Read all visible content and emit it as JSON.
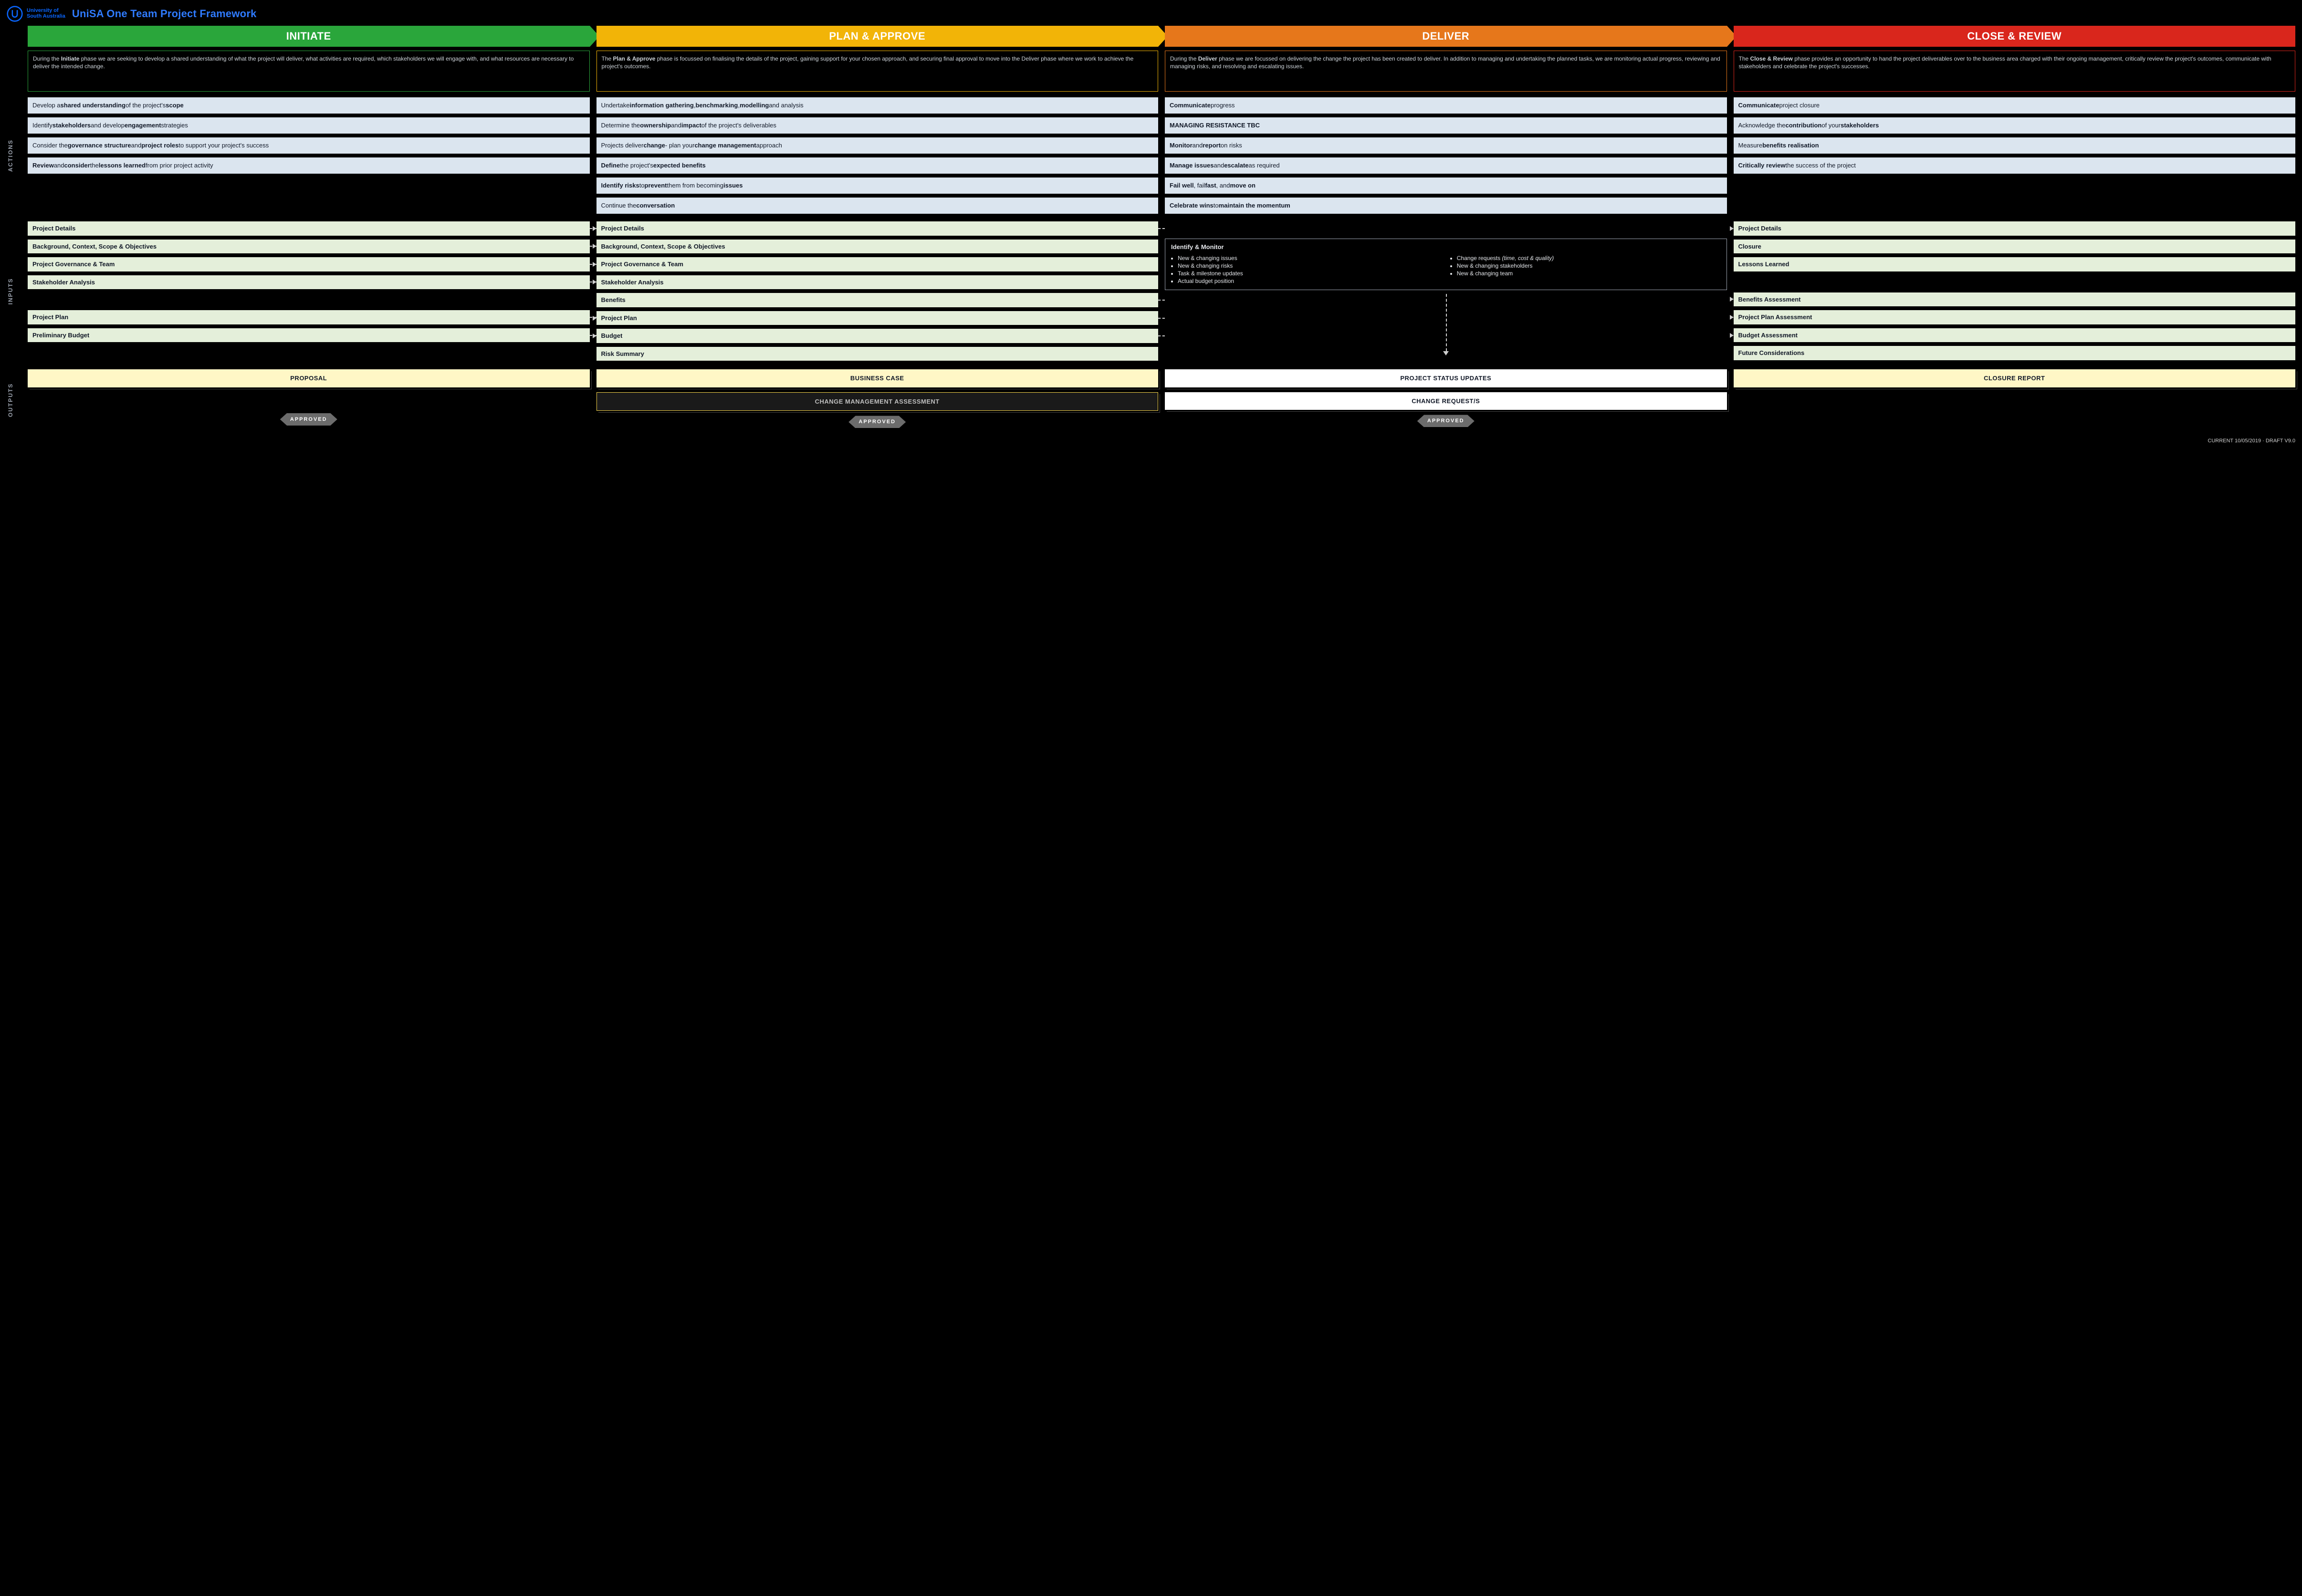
{
  "header": {
    "org_line1": "University of",
    "org_line2": "South Australia",
    "title": "UniSA One Team Project Framework"
  },
  "colors": {
    "initiate": "#2aa63b",
    "plan": "#f2b407",
    "deliver": "#e6771b",
    "close": "#d9261c",
    "action_bg": "#dbe5ef",
    "input_bg": "#e4efda",
    "output_bg": "#fff7c6",
    "approved_bg": "#6c6c6c"
  },
  "side_labels": {
    "actions": "ACTIONS",
    "inputs": "INPUTS",
    "outputs": "OUTPUTS"
  },
  "phases": {
    "initiate": {
      "title": "INITIATE",
      "desc_html": "During the <b>Initiate</b> phase we are seeking to develop a shared understanding of what the project will deliver, what activities are required, which stakeholders we will engage with, and what resources are necessary to deliver the intended change.",
      "actions_html": [
        "Develop a <b>shared understanding</b> of the project's <b>scope</b>",
        "Identify <b>stakeholders</b> and develop <b>engagement</b> strategies",
        "Consider the <b>governance structure</b> and <b>project roles</b> to support your project's success",
        "<b>Review</b> and <b>consider</b> the <b>lessons learned</b> from prior project activity"
      ],
      "inputs": [
        "Project Details",
        "Background, Context, Scope & Objectives",
        "Project Governance & Team",
        "Stakeholder Analysis",
        "",
        "Project Plan",
        "Preliminary Budget",
        ""
      ],
      "outputs": [
        {
          "label": "PROPOSAL",
          "variant": "yellow"
        }
      ],
      "approved": "APPROVED"
    },
    "plan": {
      "title": "PLAN & APPROVE",
      "desc_html": "The <b>Plan & Approve</b> phase is focussed on finalising the details of the project, gaining support for your chosen approach, and securing final approval to move into the Deliver phase where we work to achieve the project's outcomes.",
      "actions_html": [
        "Undertake <b>information gathering</b>, <b>benchmarking</b>, <b>modelling</b> and analysis",
        "Determine the <b>ownership</b> and <b>impact</b> of the project's deliverables",
        "Projects deliver <b>change</b> - plan your <b>change management</b> approach",
        "<b>Define</b> the project's <b>expected benefits</b>",
        "<b>Identify risks</b> to <b>prevent</b> them from becoming <b>issues</b>",
        "Continue the <b>conversation</b>"
      ],
      "inputs": [
        "Project Details",
        "Background, Context, Scope & Objectives",
        "Project Governance & Team",
        "Stakeholder Analysis",
        "Benefits",
        "Project Plan",
        "Budget",
        "Risk Summary"
      ],
      "outputs": [
        {
          "label": "BUSINESS CASE",
          "variant": "yellow"
        },
        {
          "label": "CHANGE MANAGEMENT ASSESSMENT",
          "variant": "dark"
        }
      ],
      "approved": "APPROVED"
    },
    "deliver": {
      "title": "DELIVER",
      "desc_html": "During the <b>Deliver</b> phase we are focussed on delivering the change the project has been created to deliver. In addition to managing and undertaking the planned tasks, we are monitoring actual progress, reviewing and managing risks, and resolving and escalating issues.",
      "actions_html": [
        "<b>Communicate</b> progress",
        "<b>MANAGING RESISTANCE TBC</b>",
        "<b>Monitor</b> and <b>report</b> on risks",
        "<b>Manage issues</b> and <b>escalate</b> as required",
        "<b>Fail well</b>, fail <b>fast</b>, and <b>move on</b>",
        "<b>Celebrate wins</b> to <b>maintain the momentum</b>"
      ],
      "monitor": {
        "title": "Identify & Monitor",
        "left": [
          "New & changing issues",
          "New & changing risks",
          "Task & milestone updates",
          "Actual budget position"
        ],
        "right_html": [
          "Change requests <span class='italic'>(time, cost & quality)</span>",
          "New & changing stakeholders",
          "New & changing team"
        ]
      },
      "outputs": [
        {
          "label": "PROJECT STATUS UPDATES",
          "variant": "white"
        },
        {
          "label": "CHANGE REQUEST/S",
          "variant": "white"
        }
      ],
      "approved": "APPROVED"
    },
    "close": {
      "title": "CLOSE & REVIEW",
      "desc_html": "The <b>Close & Review</b> phase provides an opportunity to hand the project deliverables over to the business area charged with their ongoing management, critically review the project's outcomes, communicate with stakeholders and celebrate the project's successes.",
      "actions_html": [
        "<b>Communicate</b> project closure",
        "Acknowledge the <b>contribution</b> of your <b>stakeholders</b>",
        "Measure <b>benefits realisation</b>",
        "<b>Critically review</b> the success of the project"
      ],
      "inputs": [
        "Project Details",
        "Closure",
        "Lessons Learned",
        "",
        "Benefits Assessment",
        "Project Plan Assessment",
        "Budget Assessment",
        "Future Considerations"
      ],
      "outputs": [
        {
          "label": "CLOSURE REPORT",
          "variant": "yellow"
        }
      ]
    }
  },
  "footer": "CURRENT 10/05/2019 · DRAFT V9.0"
}
